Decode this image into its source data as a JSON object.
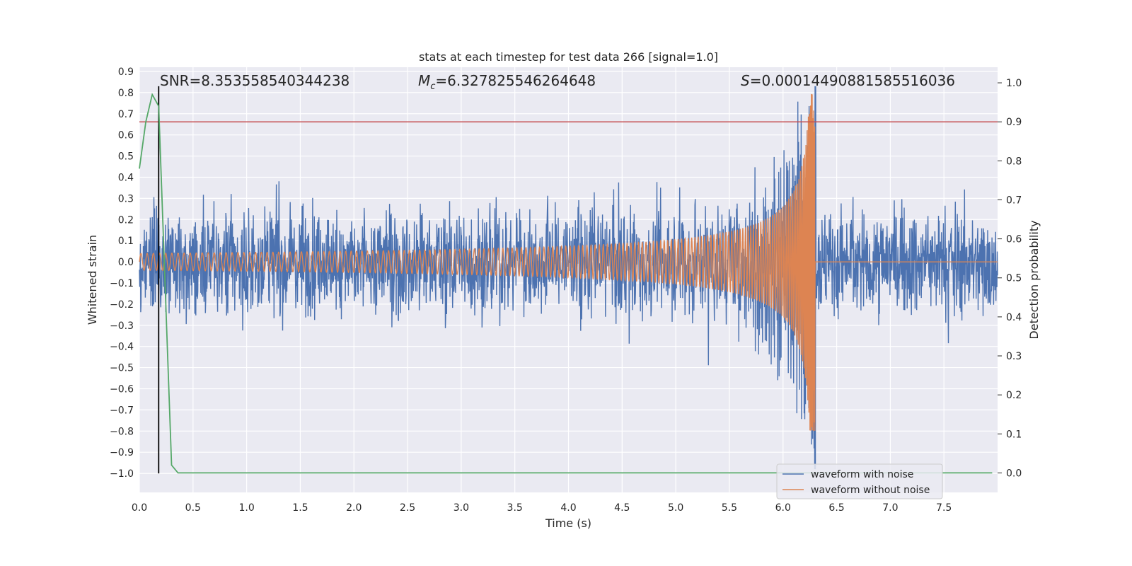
{
  "chart_data": {
    "type": "line",
    "title": "stats at each timestep for test data 266 [signal=1.0]",
    "xlabel": "Time (s)",
    "ylabel_left": "Whitened strain",
    "ylabel_right": "Detection probability",
    "xlim": [
      0.0,
      8.0
    ],
    "ylim_left": [
      -1.09,
      0.92
    ],
    "ylim_right": [
      -0.05,
      1.04
    ],
    "x_ticks": [
      "0.0",
      "0.5",
      "1.0",
      "1.5",
      "2.0",
      "2.5",
      "3.0",
      "3.5",
      "4.0",
      "4.5",
      "5.0",
      "5.5",
      "6.0",
      "6.5",
      "7.0",
      "7.5"
    ],
    "y_ticks_left": [
      "0.9",
      "0.8",
      "0.7",
      "0.6",
      "0.5",
      "0.4",
      "0.3",
      "0.2",
      "0.1",
      "0.0",
      "−0.1",
      "−0.2",
      "−0.3",
      "−0.4",
      "−0.5",
      "−0.6",
      "−0.7",
      "−0.8",
      "−0.9",
      "−1.0"
    ],
    "y_ticks_right": [
      "0.0",
      "0.1",
      "0.2",
      "0.3",
      "0.4",
      "0.5",
      "0.6",
      "0.7",
      "0.8",
      "0.9",
      "1.0"
    ],
    "annotations": {
      "snr": "SNR=8.353558540344238",
      "mc_symbol": "M",
      "mc_sub": "c",
      "mc_value": "=6.327825546264648",
      "s_symbol": "S",
      "s_value": "=0.00014490881585516036"
    },
    "series": [
      {
        "name": "waveform with noise",
        "color": "#4c72b0",
        "kind": "noisy strain, envelope ~±0.4 with peak at merger",
        "merger_time": 6.3,
        "noise_amplitude": 0.4
      },
      {
        "name": "waveform without noise",
        "color": "#dd8452",
        "kind": "chirp signal",
        "start_amplitude": 0.04,
        "peak_amplitude": 0.8,
        "merger_time": 6.3
      },
      {
        "name": "detection probability",
        "color": "#55a868",
        "axis": "right",
        "x": [
          0.0,
          0.06,
          0.12,
          0.18,
          0.3,
          0.36,
          0.42,
          7.95
        ],
        "y": [
          0.78,
          0.9,
          0.97,
          0.94,
          0.02,
          0.0,
          0.0,
          0.0
        ]
      }
    ],
    "threshold_line": {
      "axis": "right",
      "value": 0.9,
      "color": "#c44e52"
    },
    "vertical_line": {
      "x": 0.18,
      "ymin": -1.0,
      "ymax": 0.83,
      "color": "#000000"
    },
    "legend": {
      "location": "lower-right",
      "entries": [
        "waveform with noise",
        "waveform without noise"
      ]
    },
    "grid": true
  }
}
